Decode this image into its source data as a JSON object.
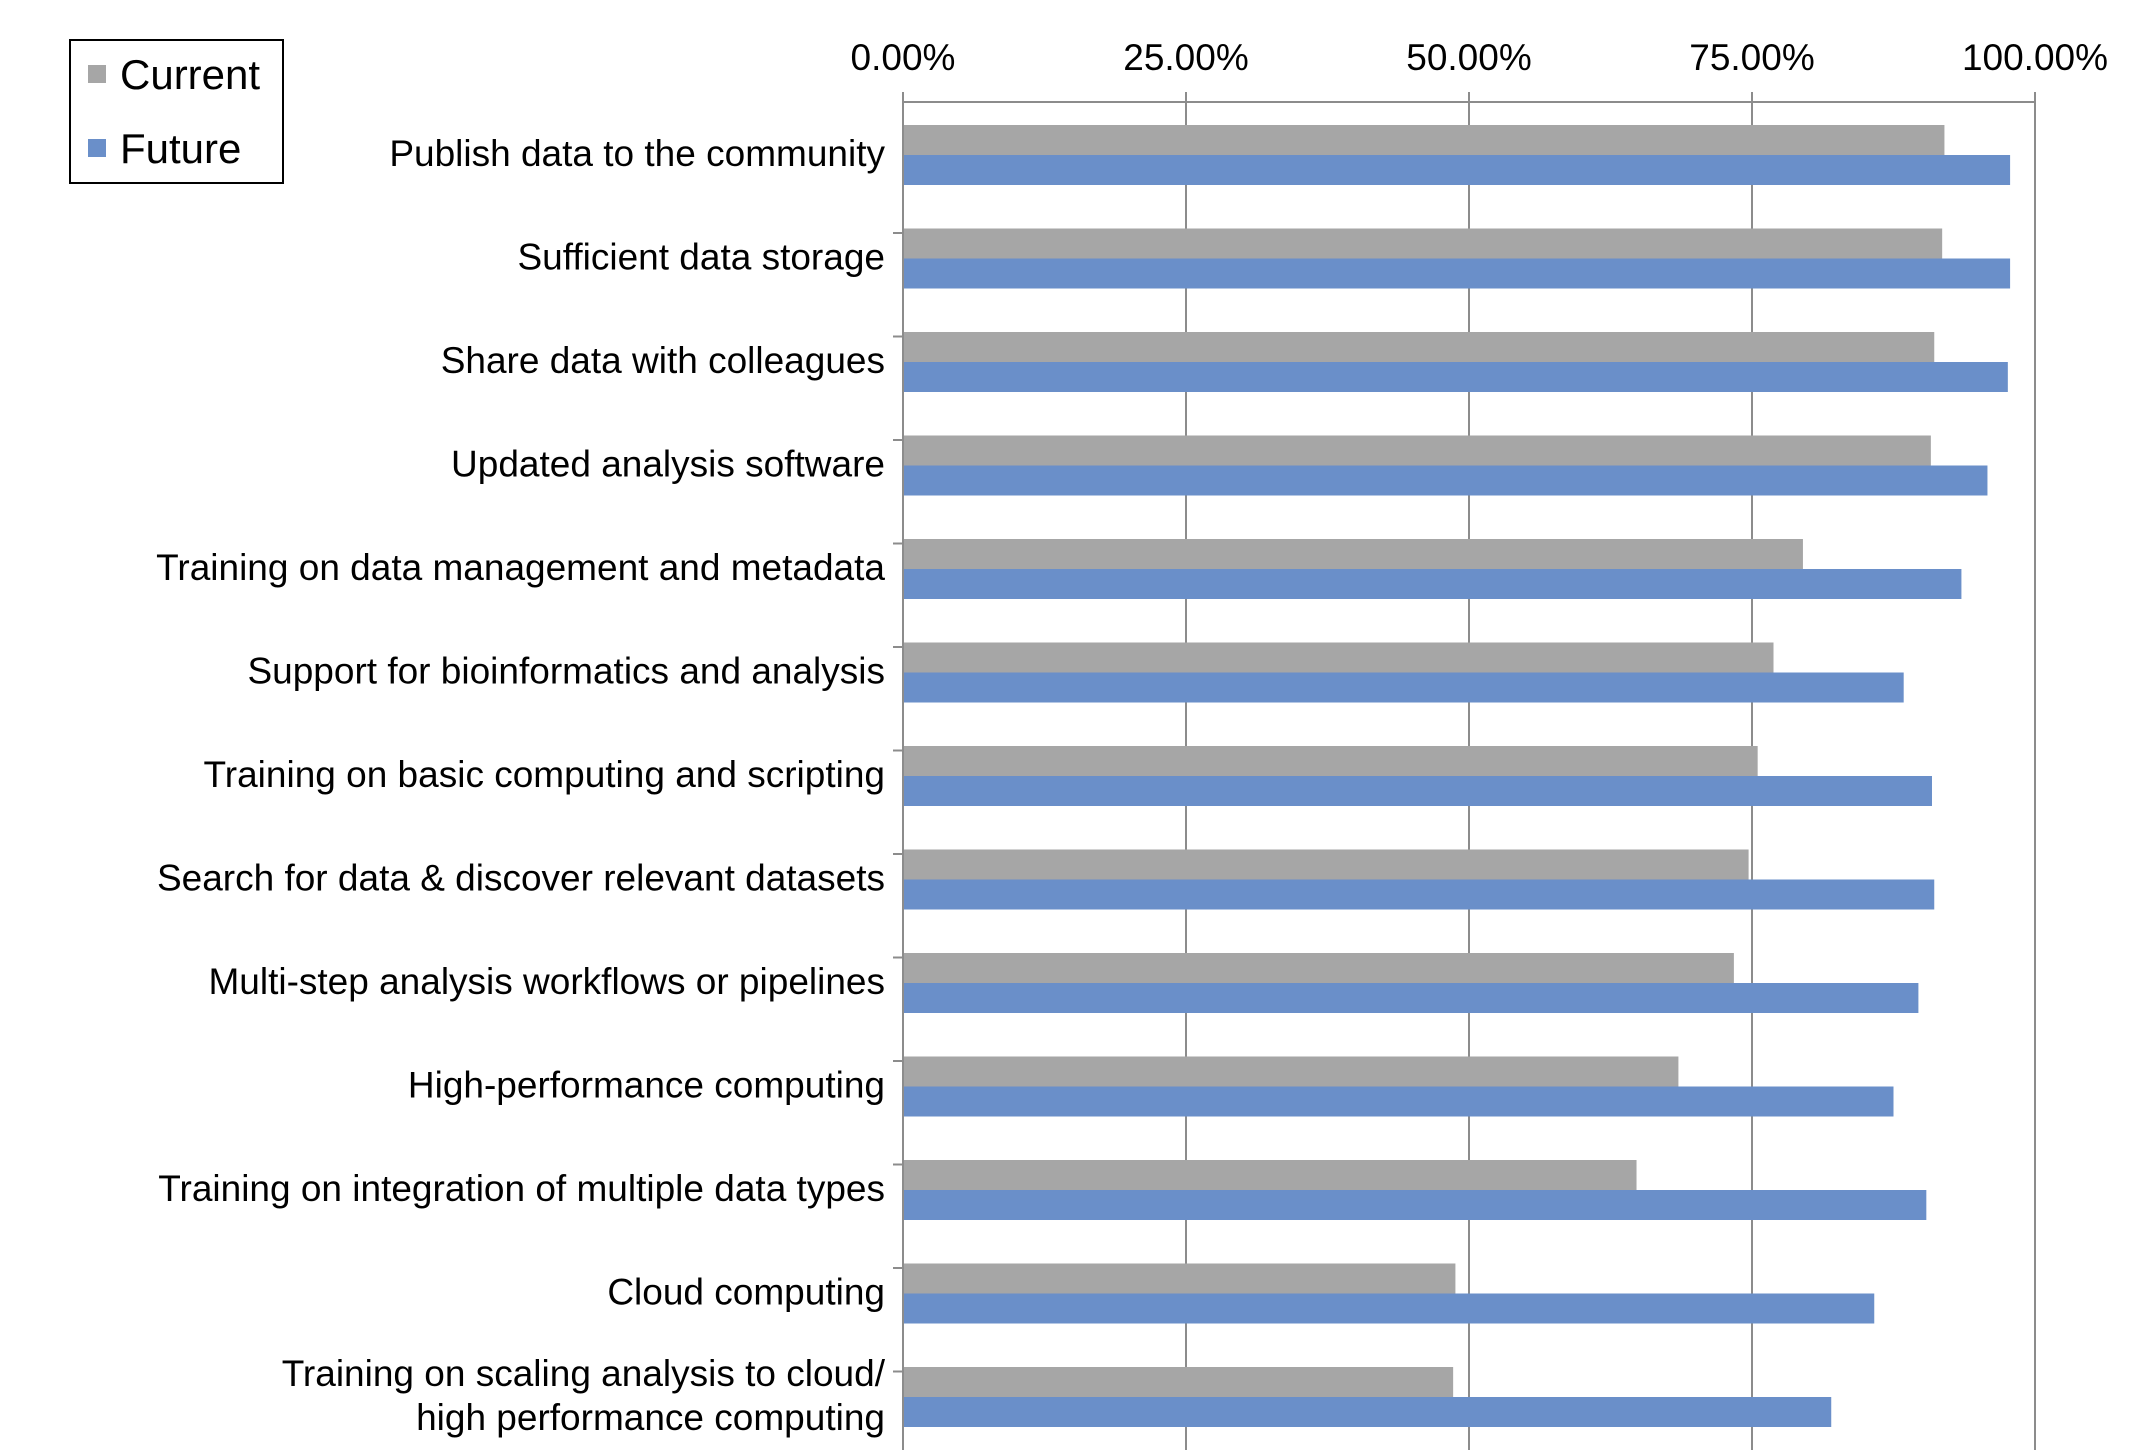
{
  "chart_data": {
    "type": "bar",
    "orientation": "horizontal",
    "title": "",
    "xlabel": "",
    "ylabel": "",
    "xlim": [
      0,
      1
    ],
    "x_ticks": [
      0,
      0.25,
      0.5,
      0.75,
      1.0
    ],
    "x_tick_labels": [
      "0.00%",
      "25.00%",
      "50.00%",
      "75.00%",
      "100.00%"
    ],
    "grid": "vertical",
    "legend_position": "top-left",
    "categories": [
      "Publish data to the community",
      "Sufficient data storage",
      "Share data with colleagues",
      "Updated analysis software",
      "Training on data management and metadata",
      "Support for bioinformatics and analysis",
      "Training on basic computing and scripting",
      "Search for data & discover relevant datasets",
      "Multi-step analysis workflows or pipelines",
      "High-performance computing",
      "Training on integration of multiple data types",
      "Cloud computing",
      "Training on scaling analysis to cloud/\nhigh performance computing"
    ],
    "series": [
      {
        "name": "Current",
        "color": "#a6a6a6",
        "values": [
          0.92,
          0.918,
          0.911,
          0.908,
          0.795,
          0.769,
          0.755,
          0.747,
          0.734,
          0.685,
          0.648,
          0.488,
          0.486
        ]
      },
      {
        "name": "Future",
        "color": "#6a8fc9",
        "values": [
          0.978,
          0.978,
          0.976,
          0.958,
          0.935,
          0.884,
          0.909,
          0.911,
          0.897,
          0.875,
          0.904,
          0.858,
          0.82
        ]
      }
    ]
  }
}
